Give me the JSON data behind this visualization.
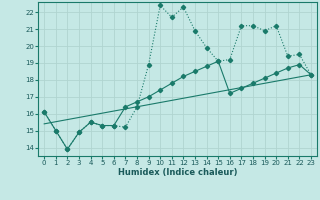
{
  "xlabel": "Humidex (Indice chaleur)",
  "bg_color": "#c5e8e5",
  "grid_color": "#b0d4d0",
  "line_color": "#1a7a6a",
  "xlim": [
    -0.5,
    23.5
  ],
  "ylim": [
    13.5,
    22.6
  ],
  "xticks": [
    0,
    1,
    2,
    3,
    4,
    5,
    6,
    7,
    8,
    9,
    10,
    11,
    12,
    13,
    14,
    15,
    16,
    17,
    18,
    19,
    20,
    21,
    22,
    23
  ],
  "yticks": [
    14,
    15,
    16,
    17,
    18,
    19,
    20,
    21,
    22
  ],
  "line1_x": [
    0,
    1,
    2,
    3,
    4,
    5,
    6,
    7,
    8,
    9,
    10,
    11,
    12,
    13,
    14,
    15,
    16,
    17,
    18,
    19,
    20,
    21,
    22,
    23
  ],
  "line1_y": [
    16.1,
    15.0,
    13.9,
    14.9,
    15.5,
    15.3,
    15.3,
    15.2,
    16.4,
    18.9,
    22.4,
    21.7,
    22.3,
    20.9,
    19.9,
    19.1,
    19.2,
    21.2,
    21.2,
    20.9,
    21.2,
    19.4,
    19.5,
    18.3
  ],
  "line2_x": [
    0,
    1,
    2,
    3,
    4,
    5,
    6,
    7,
    8,
    9,
    10,
    11,
    12,
    13,
    14,
    15,
    16,
    17,
    18,
    19,
    20,
    21,
    22,
    23
  ],
  "line2_y": [
    16.1,
    15.0,
    13.9,
    14.9,
    15.5,
    15.3,
    15.3,
    16.4,
    16.7,
    17.0,
    17.4,
    17.8,
    18.2,
    18.5,
    18.8,
    19.1,
    17.2,
    17.5,
    17.8,
    18.1,
    18.4,
    18.7,
    18.9,
    18.3
  ],
  "line3_x": [
    0,
    23
  ],
  "line3_y": [
    15.4,
    18.3
  ]
}
